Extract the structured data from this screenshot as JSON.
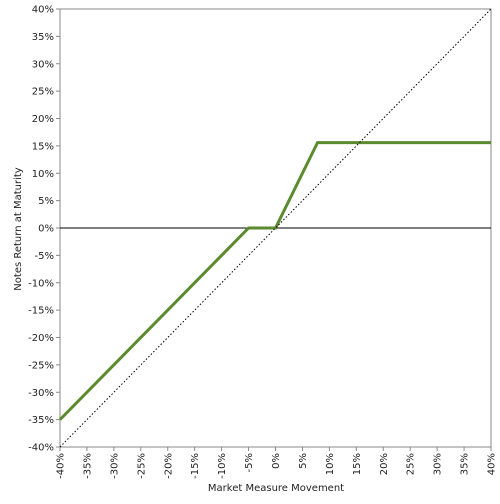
{
  "chart_data": {
    "type": "line",
    "title": "",
    "xlabel": "Market Measure Movement",
    "ylabel": "Notes Return at Maturity",
    "xlim": [
      -40,
      40
    ],
    "ylim": [
      -40,
      40
    ],
    "x_tick_values": [
      -40,
      -35,
      -30,
      -25,
      -20,
      -15,
      -10,
      -5,
      0,
      5,
      10,
      15,
      20,
      25,
      30,
      35,
      40
    ],
    "x_tick_labels": [
      "-40%",
      "-35%",
      "-30%",
      "-25%",
      "-20%",
      "-15%",
      "-10%",
      "-5%",
      "0%",
      "5%",
      "10%",
      "15%",
      "20%",
      "25%",
      "30%",
      "35%",
      "40%"
    ],
    "y_tick_values": [
      40,
      35,
      30,
      25,
      20,
      15,
      10,
      5,
      0,
      -5,
      -10,
      -15,
      -20,
      -25,
      -30,
      -35,
      -40
    ],
    "y_tick_labels": [
      "40%",
      "35%",
      "30%",
      "25%",
      "20%",
      "15%",
      "10%",
      "5%",
      "0%",
      "-5%",
      "-10%",
      "-15%",
      "-20%",
      "-25%",
      "-30%",
      "-35%",
      "-40%"
    ],
    "grid": false,
    "series": [
      {
        "style": "solid",
        "color": "#5c8a2e",
        "points": [
          [
            -40,
            -35
          ],
          [
            -5,
            0
          ],
          [
            0,
            0
          ],
          [
            7.8,
            15.6
          ],
          [
            40,
            15.6
          ]
        ]
      },
      {
        "style": "dotted",
        "color": "#000000",
        "points": [
          [
            -40,
            -40
          ],
          [
            40,
            40
          ]
        ]
      }
    ],
    "reference_lines": [
      {
        "axis": "y",
        "value": 0,
        "color": "#000000"
      }
    ]
  }
}
